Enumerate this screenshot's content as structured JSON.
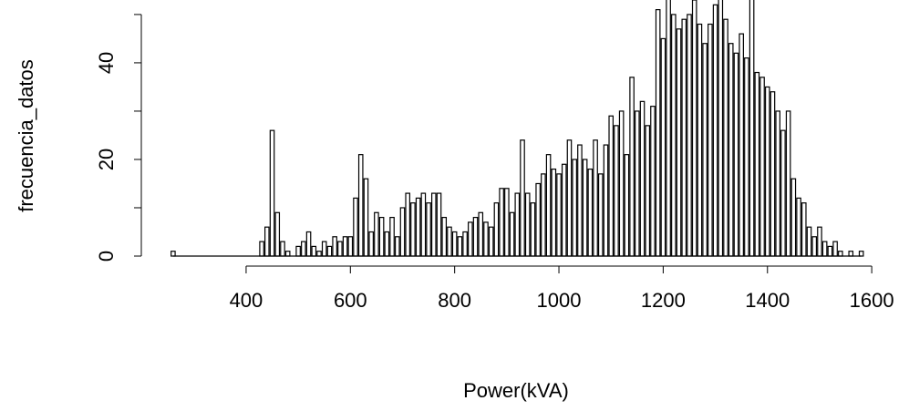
{
  "chart_data": {
    "type": "bar",
    "style": "histogram-lines",
    "x_label": "Power(kVA)",
    "y_label": "frecuencia_datos",
    "x": [
      260,
      430,
      440,
      450,
      460,
      470,
      480,
      490,
      500,
      510,
      520,
      530,
      540,
      550,
      560,
      570,
      580,
      590,
      600,
      610,
      620,
      630,
      640,
      650,
      660,
      670,
      680,
      690,
      700,
      710,
      720,
      730,
      740,
      750,
      760,
      770,
      780,
      790,
      800,
      810,
      820,
      830,
      840,
      850,
      860,
      870,
      880,
      890,
      900,
      910,
      920,
      930,
      940,
      950,
      960,
      970,
      980,
      990,
      1000,
      1010,
      1020,
      1030,
      1040,
      1050,
      1060,
      1070,
      1080,
      1090,
      1100,
      1110,
      1120,
      1130,
      1140,
      1150,
      1160,
      1170,
      1180,
      1190,
      1200,
      1210,
      1220,
      1230,
      1240,
      1250,
      1260,
      1270,
      1280,
      1290,
      1300,
      1310,
      1320,
      1330,
      1340,
      1350,
      1360,
      1370,
      1380,
      1390,
      1400,
      1410,
      1420,
      1430,
      1440,
      1450,
      1460,
      1470,
      1480,
      1490,
      1500,
      1510,
      1520,
      1530,
      1540,
      1550,
      1560,
      1570,
      1580
    ],
    "values": [
      1,
      3,
      6,
      26,
      9,
      3,
      1,
      0,
      2,
      3,
      5,
      2,
      1,
      3,
      2,
      4,
      3,
      4,
      4,
      12,
      21,
      16,
      5,
      9,
      8,
      5,
      8,
      4,
      10,
      13,
      11,
      12,
      13,
      11,
      13,
      13,
      8,
      6,
      5,
      4,
      5,
      7,
      8,
      9,
      7,
      6,
      11,
      14,
      14,
      9,
      13,
      24,
      13,
      11,
      15,
      17,
      21,
      18,
      17,
      19,
      24,
      20,
      23,
      20,
      18,
      24,
      17,
      23,
      29,
      27,
      30,
      21,
      37,
      30,
      32,
      27,
      31,
      51,
      45,
      56,
      50,
      47,
      49,
      50,
      53,
      48,
      44,
      48,
      52,
      56,
      49,
      44,
      42,
      46,
      41,
      56,
      38,
      37,
      35,
      34,
      30,
      26,
      30,
      16,
      12,
      11,
      6,
      4,
      6,
      3,
      2,
      3,
      1,
      0,
      1,
      0,
      1
    ],
    "color": "#000000",
    "xlim": [
      199,
      1640
    ],
    "xticks": [
      400,
      600,
      800,
      1000,
      1200,
      1400,
      1600
    ],
    "ylim": [
      0,
      53
    ],
    "yticks": [
      0,
      20,
      40
    ],
    "yticks_unlabeled": [
      10,
      30,
      50
    ],
    "grid": false
  }
}
